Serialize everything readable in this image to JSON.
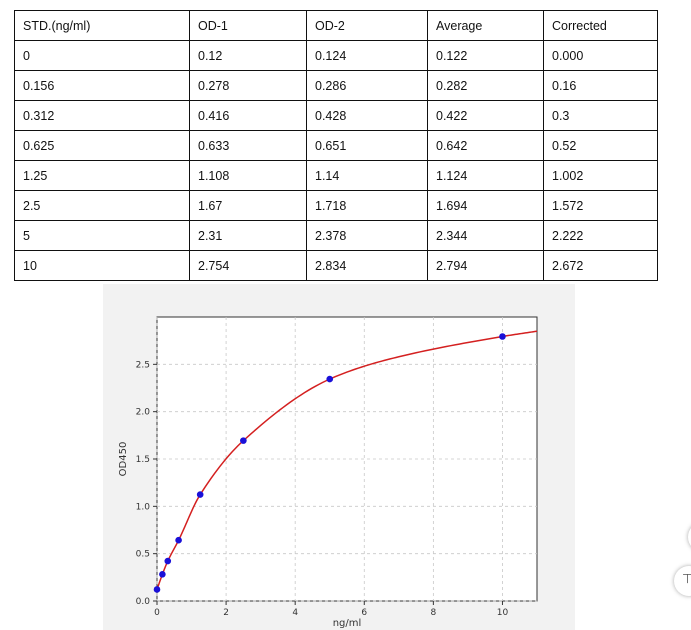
{
  "table": {
    "headers": [
      "STD.(ng/ml)",
      "OD-1",
      "OD-2",
      "Average",
      "Corrected"
    ],
    "rows": [
      [
        "0",
        "0.12",
        "0.124",
        "0.122",
        "0.000"
      ],
      [
        "0.156",
        "0.278",
        "0.286",
        "0.282",
        "0.16"
      ],
      [
        "0.312",
        "0.416",
        "0.428",
        "0.422",
        "0.3"
      ],
      [
        "0.625",
        "0.633",
        "0.651",
        "0.642",
        "0.52"
      ],
      [
        "1.25",
        "1.108",
        "1.14",
        "1.124",
        "1.002"
      ],
      [
        "2.5",
        "1.67",
        "1.718",
        "1.694",
        "1.572"
      ],
      [
        "5",
        "2.31",
        "2.378",
        "2.344",
        "2.222"
      ],
      [
        "10",
        "2.754",
        "2.834",
        "2.794",
        "2.672"
      ]
    ]
  },
  "chart_data": {
    "type": "scatter",
    "title": "",
    "xlabel": "ng/ml",
    "ylabel": "OD450",
    "xlim": [
      0,
      11
    ],
    "ylim": [
      0,
      3
    ],
    "xticks": [
      0,
      2,
      4,
      6,
      8,
      10
    ],
    "yticks": [
      0.0,
      0.5,
      1.0,
      1.5,
      2.0,
      2.5
    ],
    "ytick_labels": [
      "0.0",
      "0.5",
      "1.0",
      "1.5",
      "2.0",
      "2.5"
    ],
    "grid": true,
    "series": [
      {
        "x": [
          0,
          0.156,
          0.312,
          0.625,
          1.25,
          2.5,
          5,
          10
        ],
        "y": [
          0.122,
          0.282,
          0.422,
          0.642,
          1.124,
          1.694,
          2.344,
          2.794
        ],
        "color": "#1a10d8"
      }
    ],
    "fit_curve": {
      "x": [
        0,
        0.156,
        0.312,
        0.625,
        1.25,
        2.5,
        5,
        7,
        10,
        11
      ],
      "y": [
        0.122,
        0.282,
        0.422,
        0.642,
        1.124,
        1.694,
        2.344,
        2.58,
        2.794,
        2.85
      ],
      "color": "#d42020"
    }
  },
  "decor": {
    "edge_symbol": "⊤"
  }
}
